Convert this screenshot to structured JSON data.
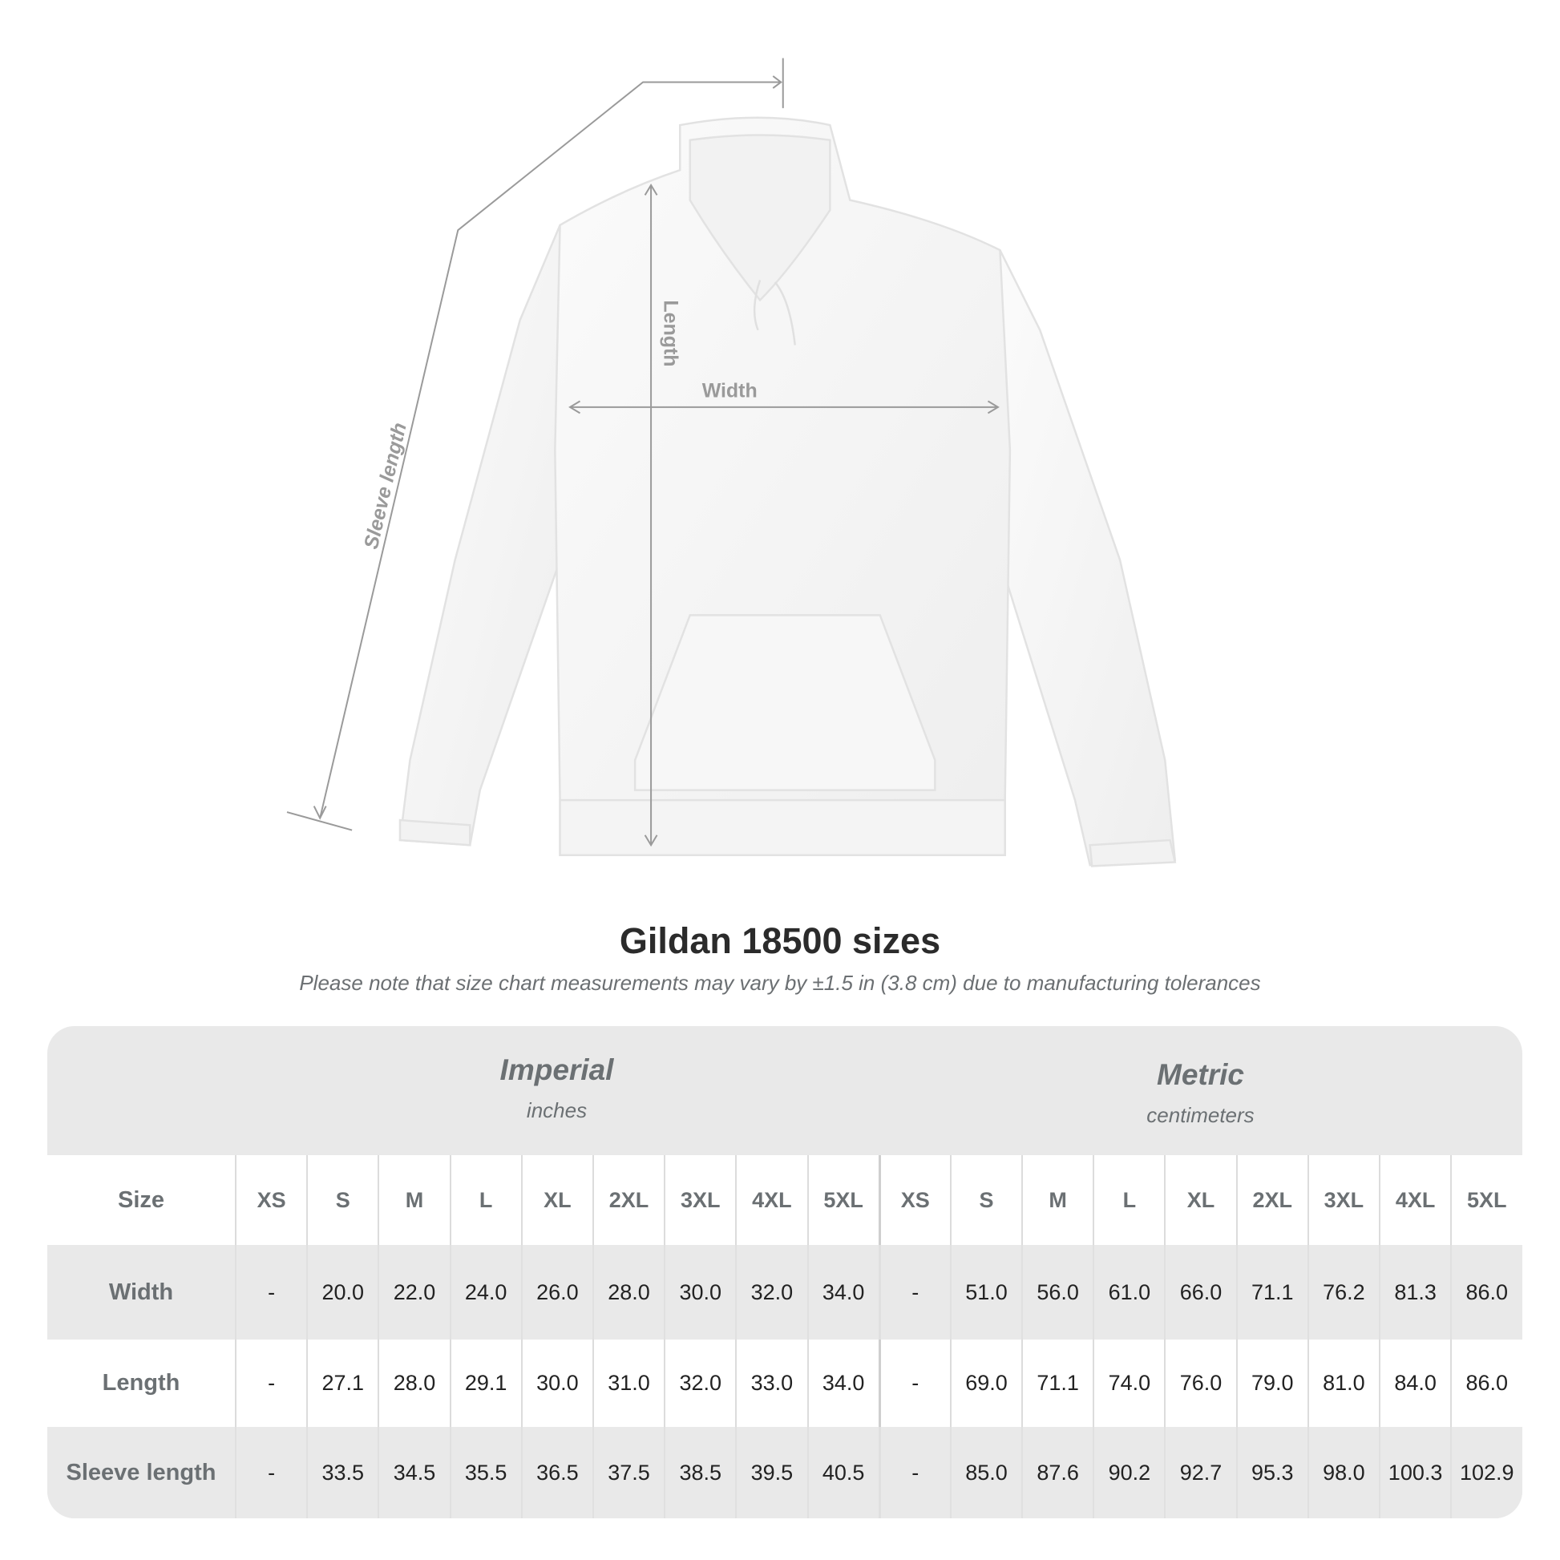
{
  "diagram": {
    "labels": {
      "length": "Length",
      "width": "Width",
      "sleeve": "Sleeve length"
    },
    "line_color": "#9a9a9a"
  },
  "title": "Gildan 18500 sizes",
  "subtitle": "Please note that size chart measurements may vary by ±1.5 in (3.8 cm) due to manufacturing tolerances",
  "table": {
    "imperial": {
      "label": "Imperial",
      "unit": "inches"
    },
    "metric": {
      "label": "Metric",
      "unit": "centimeters"
    },
    "size_label": "Size",
    "sizes": [
      "XS",
      "S",
      "M",
      "L",
      "XL",
      "2XL",
      "3XL",
      "4XL",
      "5XL"
    ],
    "rows": [
      {
        "label": "Width",
        "imperial": [
          "-",
          "20.0",
          "22.0",
          "24.0",
          "26.0",
          "28.0",
          "30.0",
          "32.0",
          "34.0"
        ],
        "metric": [
          "-",
          "51.0",
          "56.0",
          "61.0",
          "66.0",
          "71.1",
          "76.2",
          "81.3",
          "86.0"
        ]
      },
      {
        "label": "Length",
        "imperial": [
          "-",
          "27.1",
          "28.0",
          "29.1",
          "30.0",
          "31.0",
          "32.0",
          "33.0",
          "34.0"
        ],
        "metric": [
          "-",
          "69.0",
          "71.1",
          "74.0",
          "76.0",
          "79.0",
          "81.0",
          "84.0",
          "86.0"
        ]
      },
      {
        "label": "Sleeve length",
        "imperial": [
          "-",
          "33.5",
          "34.5",
          "35.5",
          "36.5",
          "37.5",
          "38.5",
          "39.5",
          "40.5"
        ],
        "metric": [
          "-",
          "85.0",
          "87.6",
          "90.2",
          "92.7",
          "95.3",
          "98.0",
          "100.3",
          "102.9"
        ]
      }
    ]
  }
}
